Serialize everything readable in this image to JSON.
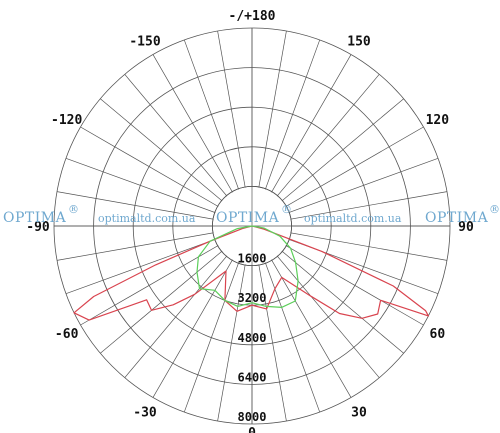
{
  "chart_data": {
    "type": "polar",
    "angle_labels": [
      {
        "angle": 180,
        "text": "-/+180"
      },
      {
        "angle": 150,
        "text": "150"
      },
      {
        "angle": 120,
        "text": "120"
      },
      {
        "angle": 90,
        "text": "90"
      },
      {
        "angle": 60,
        "text": "60"
      },
      {
        "angle": 30,
        "text": "30"
      },
      {
        "angle": 0,
        "text": "0"
      },
      {
        "angle": -30,
        "text": "-30"
      },
      {
        "angle": -60,
        "text": "-60"
      },
      {
        "angle": -90,
        "text": "-90"
      },
      {
        "angle": -120,
        "text": "-120"
      },
      {
        "angle": -150,
        "text": "-150"
      }
    ],
    "radial_ticks": [
      1600,
      3200,
      4800,
      6400,
      8000
    ],
    "rmax": 8000,
    "angle_grid_step": 10,
    "series": [
      {
        "color": "#d9444f",
        "points": [
          [
            -90,
            0
          ],
          [
            -80,
            0
          ],
          [
            -75,
            400
          ],
          [
            -70,
            1800
          ],
          [
            -68,
            4200
          ],
          [
            -66,
            7000
          ],
          [
            -64,
            8000
          ],
          [
            -60,
            7600
          ],
          [
            -55,
            5200
          ],
          [
            -50,
            5300
          ],
          [
            -45,
            4500
          ],
          [
            -40,
            3600
          ],
          [
            -30,
            2100
          ],
          [
            -20,
            3200
          ],
          [
            -10,
            3500
          ],
          [
            0,
            3200
          ],
          [
            10,
            3400
          ],
          [
            20,
            2700
          ],
          [
            30,
            2400
          ],
          [
            40,
            3700
          ],
          [
            45,
            5000
          ],
          [
            50,
            5800
          ],
          [
            55,
            6200
          ],
          [
            60,
            6000
          ],
          [
            63,
            8000
          ],
          [
            64,
            7800
          ],
          [
            67,
            6200
          ],
          [
            70,
            3000
          ],
          [
            75,
            500
          ],
          [
            80,
            0
          ],
          [
            90,
            0
          ]
        ]
      },
      {
        "color": "#5ccf5a",
        "points": [
          [
            -90,
            0
          ],
          [
            -80,
            600
          ],
          [
            -70,
            1800
          ],
          [
            -60,
            2500
          ],
          [
            -50,
            2900
          ],
          [
            -40,
            3300
          ],
          [
            -30,
            3000
          ],
          [
            -20,
            3200
          ],
          [
            -10,
            3300
          ],
          [
            0,
            3100
          ],
          [
            10,
            3300
          ],
          [
            20,
            3500
          ],
          [
            30,
            3500
          ],
          [
            40,
            2900
          ],
          [
            50,
            2300
          ],
          [
            60,
            1800
          ],
          [
            70,
            1200
          ],
          [
            80,
            500
          ],
          [
            90,
            0
          ]
        ]
      }
    ]
  },
  "watermark": {
    "brand": "OPTIMA",
    "reg": "®",
    "site": "optimaltd.com.ua"
  }
}
